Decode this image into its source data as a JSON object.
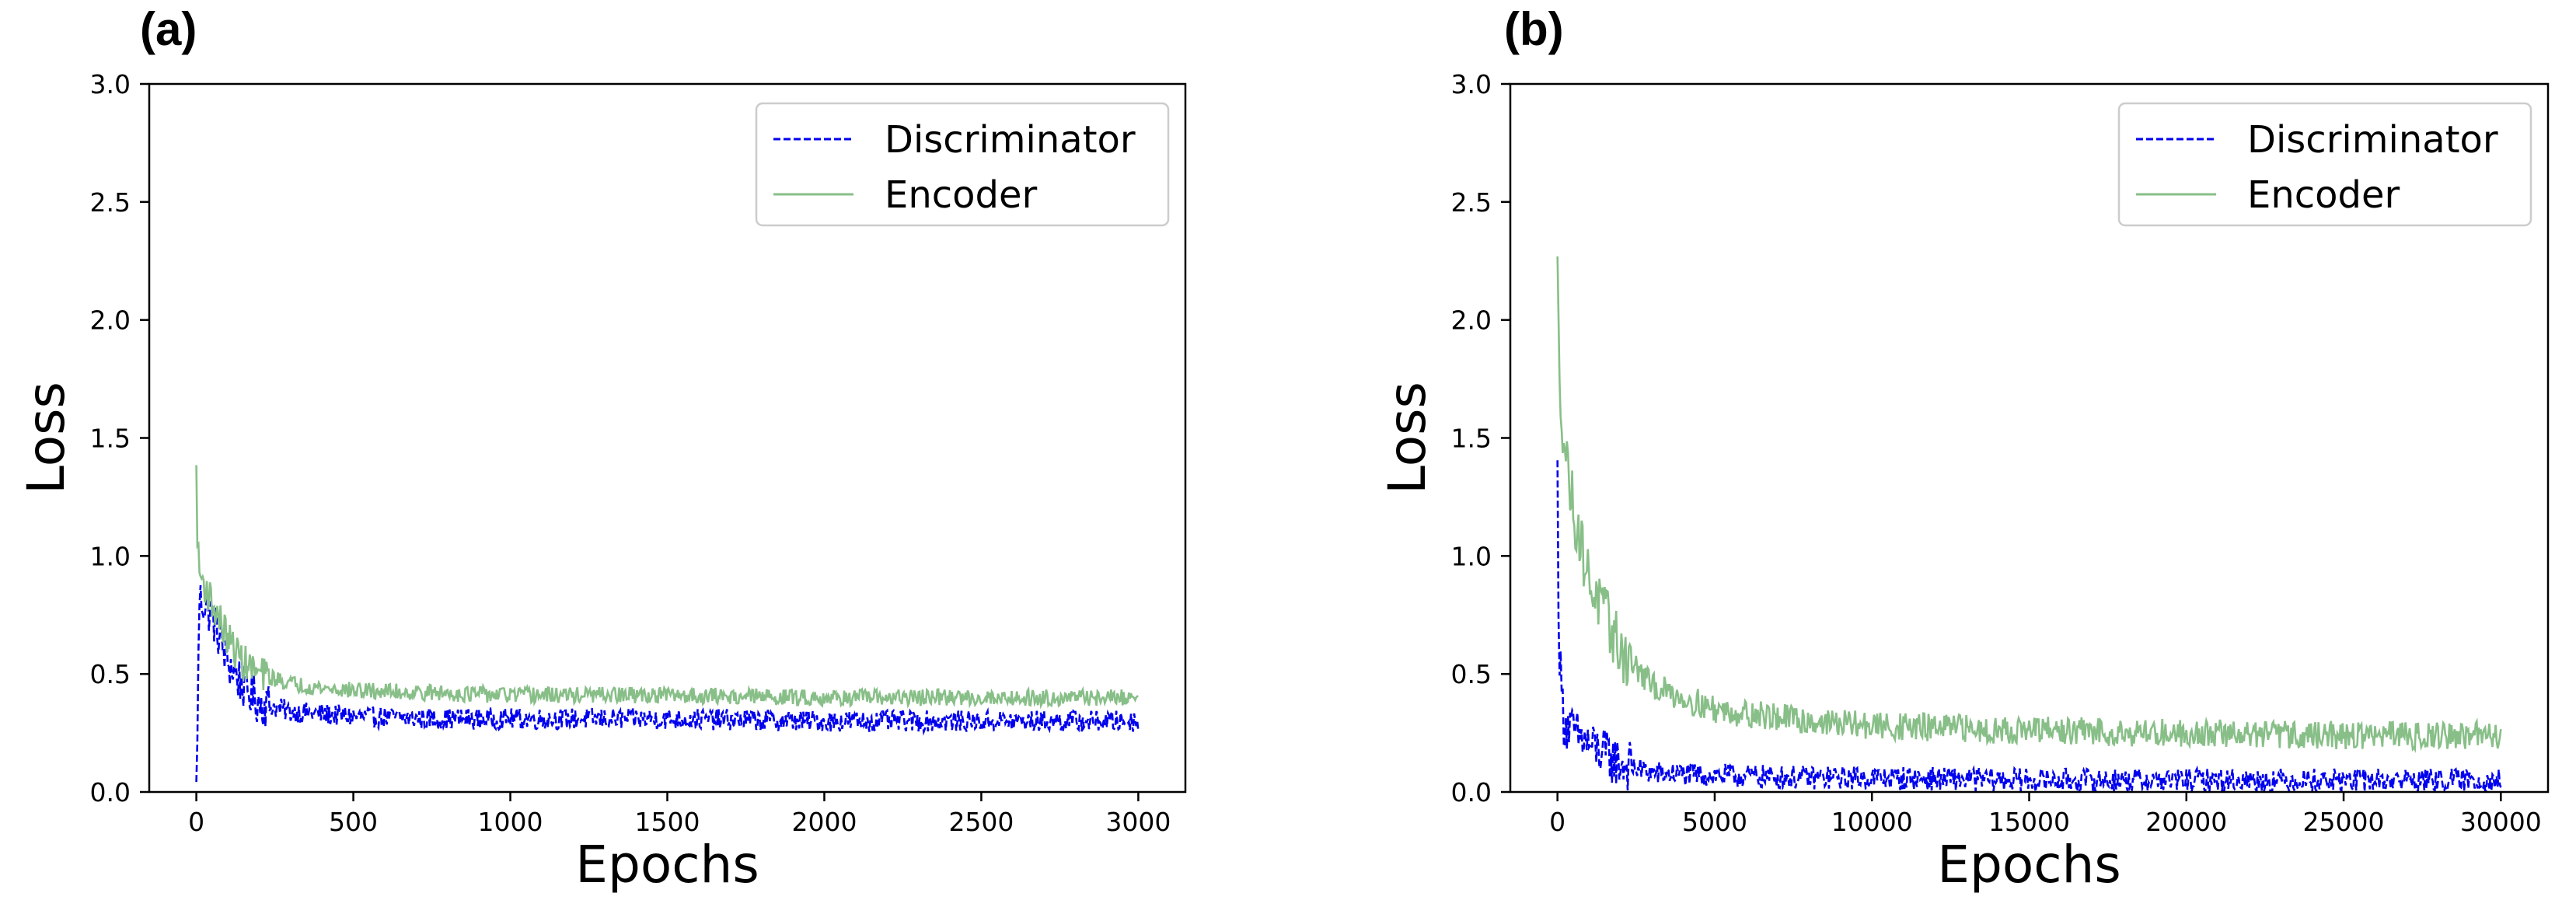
{
  "chart_data": [
    {
      "type": "line",
      "panel_label": "(a)",
      "xlabel": "Epochs",
      "ylabel": "Loss",
      "xlim": [
        -150,
        3150
      ],
      "ylim": [
        0,
        3
      ],
      "x_ticks": [
        0,
        500,
        1000,
        1500,
        2000,
        2500,
        3000
      ],
      "y_ticks": [
        0.0,
        0.5,
        1.0,
        1.5,
        2.0,
        2.5,
        3.0
      ],
      "x_tick_labels": [
        "0",
        "500",
        "1000",
        "1500",
        "2000",
        "2500",
        "3000"
      ],
      "y_tick_labels": [
        "0.0",
        "0.5",
        "1.0",
        "1.5",
        "2.0",
        "2.5",
        "3.0"
      ],
      "grid": false,
      "legend_position": "top-right",
      "series": [
        {
          "name": "Discriminator",
          "color": "#0000ee",
          "style": "dashed",
          "x": [
            0,
            10,
            25,
            50,
            75,
            100,
            150,
            200,
            300,
            400,
            500,
            750,
            1000,
            1500,
            2000,
            2500,
            3000
          ],
          "y": [
            0.0,
            0.82,
            0.8,
            0.75,
            0.65,
            0.55,
            0.45,
            0.38,
            0.34,
            0.33,
            0.32,
            0.31,
            0.31,
            0.31,
            0.3,
            0.3,
            0.3
          ],
          "noise": 0.045
        },
        {
          "name": "Encoder",
          "color": "#88bf88",
          "style": "solid",
          "x": [
            0,
            5,
            10,
            25,
            50,
            100,
            150,
            200,
            300,
            400,
            500,
            750,
            1000,
            1500,
            2000,
            2500,
            3000
          ],
          "y": [
            1.35,
            1.0,
            0.93,
            0.88,
            0.8,
            0.65,
            0.55,
            0.5,
            0.46,
            0.44,
            0.43,
            0.42,
            0.41,
            0.41,
            0.4,
            0.4,
            0.4
          ],
          "noise": 0.035
        }
      ]
    },
    {
      "type": "line",
      "panel_label": "(b)",
      "xlabel": "Epochs",
      "ylabel": "Loss",
      "xlim": [
        -1500,
        31500
      ],
      "ylim": [
        0,
        3
      ],
      "x_ticks": [
        0,
        5000,
        10000,
        15000,
        20000,
        25000,
        30000
      ],
      "y_ticks": [
        0.0,
        0.5,
        1.0,
        1.5,
        2.0,
        2.5,
        3.0
      ],
      "x_tick_labels": [
        "0",
        "5000",
        "10000",
        "15000",
        "20000",
        "25000",
        "30000"
      ],
      "y_tick_labels": [
        "0.0",
        "0.5",
        "1.0",
        "1.5",
        "2.0",
        "2.5",
        "3.0"
      ],
      "grid": false,
      "legend_position": "top-right",
      "series": [
        {
          "name": "Discriminator",
          "color": "#0000ee",
          "style": "dashed",
          "x": [
            0,
            50,
            200,
            500,
            1000,
            2000,
            3000,
            5000,
            8000,
            10000,
            15000,
            20000,
            25000,
            30000
          ],
          "y": [
            1.35,
            0.6,
            0.3,
            0.25,
            0.2,
            0.12,
            0.08,
            0.07,
            0.06,
            0.06,
            0.05,
            0.05,
            0.05,
            0.05
          ],
          "noise": 0.05
        },
        {
          "name": "Encoder",
          "color": "#88bf88",
          "style": "solid",
          "x": [
            0,
            50,
            200,
            500,
            1000,
            2000,
            3000,
            5000,
            8000,
            10000,
            15000,
            20000,
            25000,
            30000
          ],
          "y": [
            2.2,
            1.8,
            1.5,
            1.2,
            0.9,
            0.6,
            0.45,
            0.35,
            0.3,
            0.28,
            0.26,
            0.25,
            0.24,
            0.24
          ],
          "noise": 0.06
        }
      ]
    }
  ]
}
